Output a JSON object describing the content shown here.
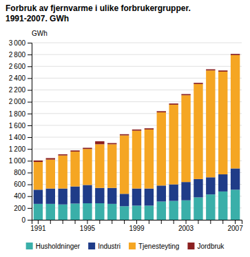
{
  "chart_data": {
    "type": "bar",
    "stacked": true,
    "title": "Forbruk av fjernvarme i ulike forbrukergrupper.",
    "subtitle": "1991-2007. GWh",
    "ylabel": "GWh",
    "categories": [
      "1991",
      null,
      null,
      null,
      "1995",
      null,
      null,
      null,
      "1999",
      null,
      null,
      null,
      "2003",
      null,
      null,
      null,
      "2007"
    ],
    "series": [
      {
        "name": "Husholdninger",
        "color": "#3aafa9",
        "values": [
          270,
          270,
          260,
          275,
          280,
          280,
          270,
          230,
          240,
          240,
          310,
          320,
          330,
          380,
          430,
          480,
          510
        ]
      },
      {
        "name": "Industri",
        "color": "#1f3c88",
        "values": [
          240,
          260,
          270,
          290,
          310,
          260,
          270,
          210,
          290,
          290,
          270,
          280,
          310,
          310,
          290,
          290,
          360
        ]
      },
      {
        "name": "Tjenesteyting",
        "color": "#f5a623",
        "values": [
          470,
          490,
          560,
          590,
          610,
          740,
          740,
          990,
          980,
          1000,
          1240,
          1350,
          1470,
          1610,
          1810,
          1740,
          1920
        ]
      },
      {
        "name": "Jordbruk",
        "color": "#8b2020",
        "values": [
          25,
          25,
          20,
          20,
          20,
          50,
          20,
          20,
          20,
          20,
          20,
          20,
          20,
          20,
          20,
          20,
          20
        ]
      }
    ],
    "ylim": [
      0,
      3000
    ],
    "yticks": [
      0,
      200,
      400,
      600,
      800,
      {
        "value": 1000,
        "label": "1 000"
      },
      {
        "value": 1200,
        "label": "1 200"
      },
      {
        "value": 1400,
        "label": "1 400"
      },
      {
        "value": 1600,
        "label": "1 600"
      },
      {
        "value": 1800,
        "label": "1 800"
      },
      {
        "value": 2000,
        "label": "2 000"
      },
      {
        "value": 2200,
        "label": "2 200"
      },
      {
        "value": 2400,
        "label": "2 400"
      },
      {
        "value": 2600,
        "label": "2 600"
      },
      {
        "value": 2800,
        "label": "2 800"
      },
      {
        "value": 3000,
        "label": "3 000"
      }
    ],
    "grid": true,
    "legend": "bottom"
  }
}
